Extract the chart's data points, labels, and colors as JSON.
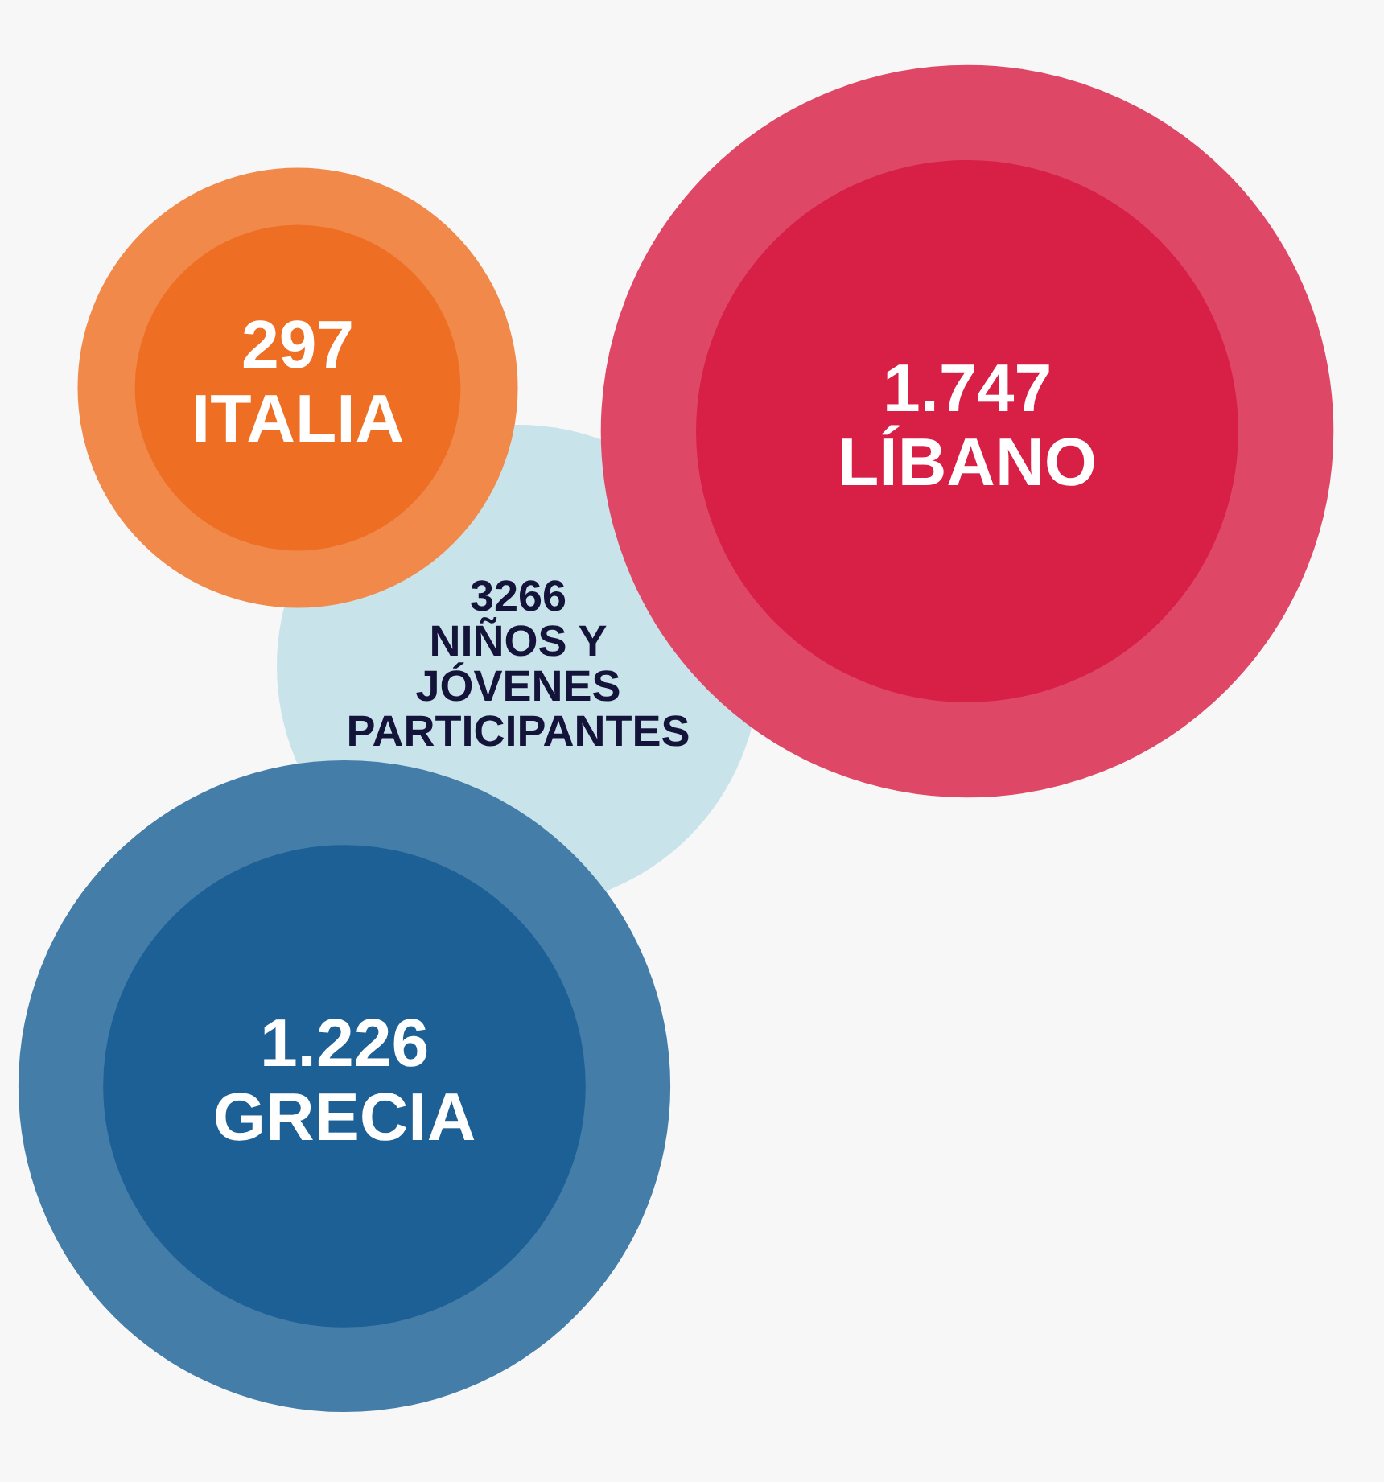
{
  "chart_data": {
    "type": "other",
    "title": "3266\nNIÑOS Y\nJÓVENES\nPARTICIPANTES",
    "categories": [
      "ITALIA",
      "LÍBANO",
      "GRECIA"
    ],
    "values": [
      297,
      1747,
      1226
    ],
    "value_labels": [
      "297",
      "1.747",
      "1.226"
    ],
    "colors": [
      "#ee6f24",
      "#d81f46",
      "#1c6096"
    ]
  }
}
